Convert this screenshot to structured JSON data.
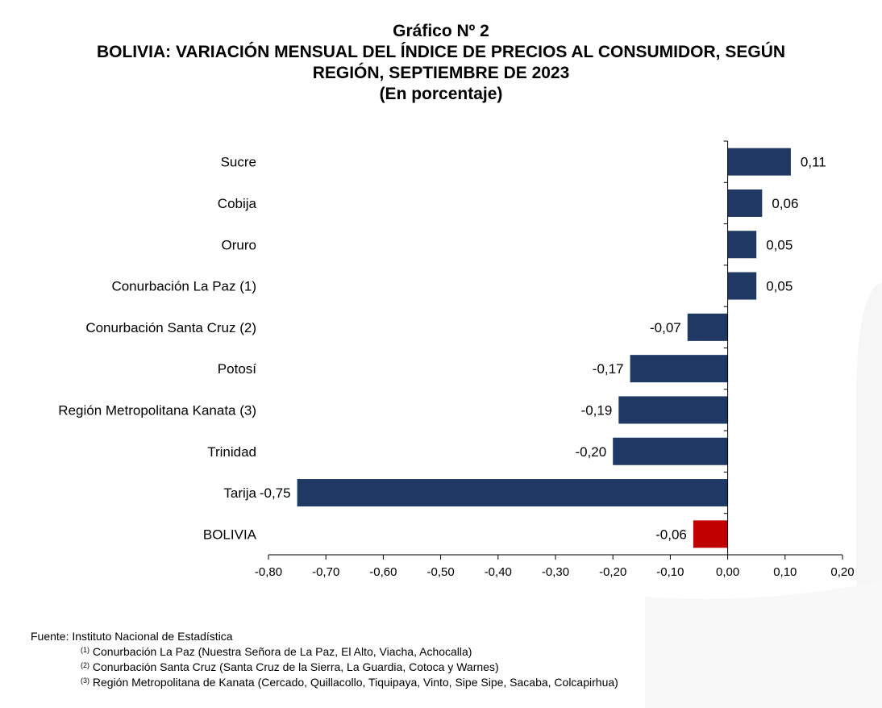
{
  "header": {
    "number": "Gráfico Nº 2",
    "title_line1": "BOLIVIA: VARIACIÓN MENSUAL DEL ÍNDICE DE PRECIOS AL CONSUMIDOR, SEGÚN",
    "title_line2": "REGIÓN, SEPTIEMBRE DE 2023",
    "unit": "(En porcentaje)"
  },
  "chart_data": {
    "type": "bar",
    "orientation": "horizontal",
    "categories": [
      "Sucre",
      "Cobija",
      "Oruro",
      "Conurbación La Paz (1)",
      "Conurbación Santa Cruz (2)",
      "Potosí",
      "Región Metropolitana Kanata (3)",
      "Trinidad",
      "Tarija",
      "BOLIVIA"
    ],
    "values": [
      0.11,
      0.06,
      0.05,
      0.05,
      -0.07,
      -0.17,
      -0.19,
      -0.2,
      -0.75,
      -0.06
    ],
    "value_labels": [
      "0,11",
      "0,06",
      "0,05",
      "0,05",
      "-0,07",
      "-0,17",
      "-0,19",
      "-0,20",
      "-0,75",
      "-0,06"
    ],
    "bar_colors": [
      "#1f3864",
      "#1f3864",
      "#1f3864",
      "#1f3864",
      "#1f3864",
      "#1f3864",
      "#1f3864",
      "#1f3864",
      "#1f3864",
      "#c00000"
    ],
    "xlim": [
      -0.8,
      0.2
    ],
    "xticks": [
      -0.8,
      -0.7,
      -0.6,
      -0.5,
      -0.4,
      -0.3,
      -0.2,
      -0.1,
      0.0,
      0.1,
      0.2
    ],
    "xtick_labels": [
      "-0,80",
      "-0,70",
      "-0,60",
      "-0,50",
      "-0,40",
      "-0,30",
      "-0,20",
      "-0,10",
      "0,00",
      "0,10",
      "0,20"
    ],
    "grid": false,
    "legend": "none"
  },
  "footer": {
    "source": "Fuente: Instituto Nacional de Estadística",
    "notes": [
      {
        "mark": "(1)",
        "text": "Conurbación La Paz (Nuestra Señora de La Paz, El Alto, Viacha, Achocalla)"
      },
      {
        "mark": "(2)",
        "text": "Conurbación Santa Cruz (Santa Cruz de la Sierra, La Guardia, Cotoca y Warnes)"
      },
      {
        "mark": "(3)",
        "text": "Región Metropolitana de Kanata (Cercado, Quillacollo, Tiquipaya, Vinto, Sipe Sipe, Sacaba, Colcapirhua)"
      }
    ]
  }
}
